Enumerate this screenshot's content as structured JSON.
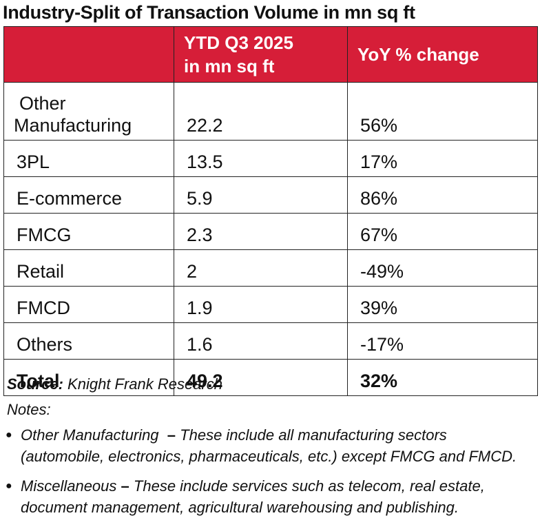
{
  "title": "Industry-Split of Transaction Volume in mn sq ft",
  "colors": {
    "header_bg": "#d61e38",
    "header_text": "#ffffff",
    "border": "#222222"
  },
  "table": {
    "headers": [
      "",
      "YTD Q3 2025\nin mn sq ft",
      "YoY % change"
    ],
    "header_col2_line1": "YTD Q3 2025",
    "header_col2_line2": "in mn sq ft",
    "header_col3": "YoY % change",
    "rows": [
      {
        "label_line1": "Other",
        "label_line2": "Manufacturing",
        "volume": "22.2",
        "yoy": "56%"
      },
      {
        "label": "3PL",
        "volume": "13.5",
        "yoy": "17%"
      },
      {
        "label": "E-commerce",
        "volume": "5.9",
        "yoy": "86%"
      },
      {
        "label": "FMCG",
        "volume": "2.3",
        "yoy": "67%"
      },
      {
        "label": "Retail",
        "volume": "2",
        "yoy": "-49%"
      },
      {
        "label": "FMCD",
        "volume": "1.9",
        "yoy": "39%"
      },
      {
        "label": "Others",
        "volume": "1.6",
        "yoy": "-17%"
      }
    ],
    "total": {
      "label": "Total",
      "volume": "49.2",
      "yoy": "32%"
    }
  },
  "source": {
    "label": "Source:",
    "text": "Knight Frank Research"
  },
  "notes": {
    "title": "Notes:",
    "items": [
      {
        "term": "Other Manufacturing",
        "dash": "–",
        "line1": "These include all manufacturing sectors",
        "line2": "(automobile, electronics, pharmaceuticals, etc.) except FMCG and FMCD."
      },
      {
        "term": "Miscellaneous",
        "dash": "–",
        "line1": "These include services such as telecom, real estate,",
        "line2": "document management, agricultural warehousing and publishing."
      }
    ]
  }
}
